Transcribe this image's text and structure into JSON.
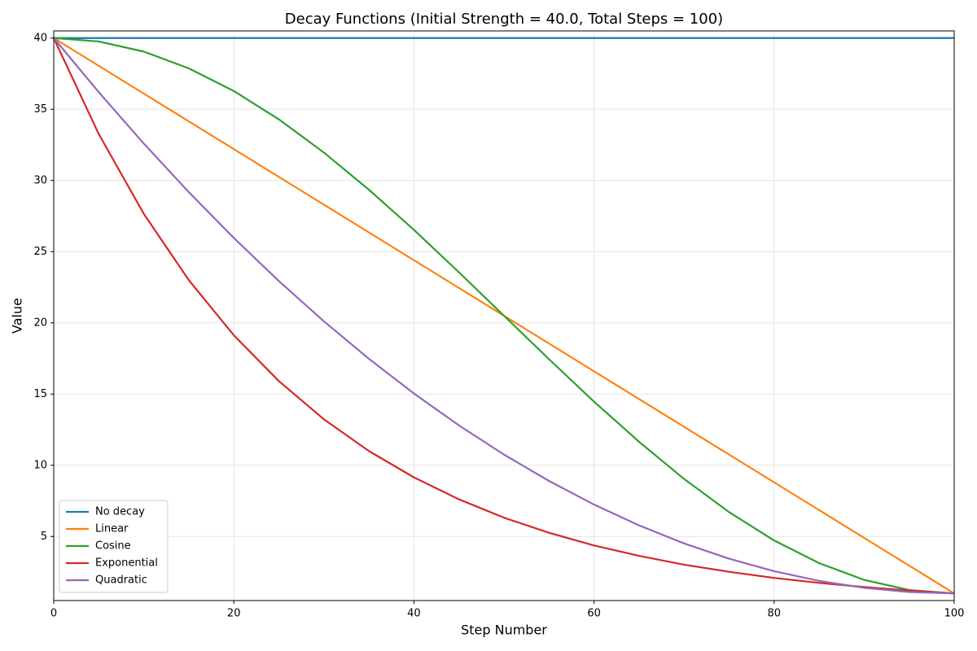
{
  "chart_data": {
    "type": "line",
    "title": "Decay Functions (Initial Strength = 40.0, Total Steps = 100)",
    "x_label": "Step Number",
    "y_label": "Value",
    "x": [
      0,
      5,
      10,
      15,
      20,
      25,
      30,
      35,
      40,
      45,
      50,
      55,
      60,
      65,
      70,
      75,
      80,
      85,
      90,
      95,
      100
    ],
    "series": [
      {
        "name": "No decay",
        "color": "#1f77b4",
        "values": [
          40,
          40,
          40,
          40,
          40,
          40,
          40,
          40,
          40,
          40,
          40,
          40,
          40,
          40,
          40,
          40,
          40,
          40,
          40,
          40,
          40
        ]
      },
      {
        "name": "Linear",
        "color": "#ff7f0e",
        "values": [
          40,
          38.05,
          36.1,
          34.15,
          32.2,
          30.25,
          28.3,
          26.35,
          24.4,
          22.45,
          20.5,
          18.55,
          16.6,
          14.65,
          12.7,
          10.75,
          8.8,
          6.85,
          4.9,
          2.95,
          1
        ]
      },
      {
        "name": "Cosine",
        "color": "#2ca02c",
        "values": [
          40,
          39.76,
          39.05,
          37.87,
          36.28,
          34.29,
          31.96,
          29.35,
          26.53,
          23.55,
          20.5,
          17.45,
          14.47,
          11.65,
          9.04,
          6.71,
          4.72,
          3.13,
          1.95,
          1.24,
          1
        ]
      },
      {
        "name": "Exponential",
        "color": "#d62728",
        "values": [
          40,
          33.26,
          27.66,
          23.0,
          19.13,
          15.91,
          13.23,
          11.0,
          9.15,
          7.61,
          6.32,
          5.26,
          4.37,
          3.64,
          3.02,
          2.52,
          2.09,
          1.74,
          1.45,
          1.2,
          1
        ]
      },
      {
        "name": "Quadratic",
        "color": "#9467bd",
        "values": [
          40,
          36.2,
          32.59,
          29.18,
          25.96,
          22.94,
          20.11,
          17.48,
          15.04,
          12.8,
          10.75,
          8.9,
          7.24,
          5.78,
          4.51,
          3.44,
          2.56,
          1.88,
          1.39,
          1.1,
          1
        ]
      }
    ],
    "xlim": [
      0,
      100
    ],
    "xticks": [
      0,
      20,
      40,
      60,
      80,
      100
    ],
    "ylim": [
      0.5,
      40.5
    ],
    "yticks": [
      5,
      10,
      15,
      20,
      25,
      30,
      35,
      40
    ],
    "grid": true,
    "legend": "lower left"
  }
}
